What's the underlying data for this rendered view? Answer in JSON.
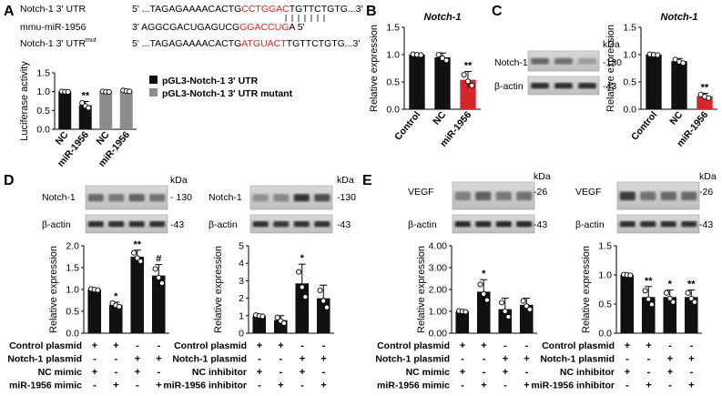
{
  "colors": {
    "black_bar": "#111111",
    "gray_bar": "#8c8c8c",
    "red_bar": "#d7262b",
    "seq_red": "#e2231a",
    "blot_bg": "#c8c8c8"
  },
  "panel_letters": [
    "A",
    "B",
    "C",
    "D",
    "E"
  ],
  "panel_a": {
    "seq1_label": "Notch-1 3' UTR",
    "seq1_pre": "5' ...TAGAGAAAACACTG",
    "seq1_red": "CCTGGAC",
    "seq1_post": "TGTTCTGTG...3'",
    "seq2_label": "mmu-miR-1956",
    "seq2_pre": "3'  AGGCGACUGAGUCG",
    "seq2_red": "GGACCUG",
    "seq2_post": "A 5'",
    "seq3_label": "Notch-1 3' UTR",
    "seq3_sup": "mut",
    "seq3_pre": "5' ...TAGAGAAAACACTG",
    "seq3_red": "ATGUACT",
    "seq3_post": "TGTTCTGTG...3'",
    "ylabel": "Luciferase activity",
    "yticks": [
      "0.0",
      "0.5",
      "1.0",
      "1.5"
    ],
    "legend": [
      "pGL3-Notch-1 3' UTR",
      "pGL3-Notch-1 3' UTR mutant"
    ],
    "xlabels": [
      "NC",
      "miR-1956",
      "NC",
      "miR-1956"
    ]
  },
  "panel_b": {
    "title": "Notch-1",
    "ylabel": "Relative expression",
    "yticks": [
      "0.0",
      "0.5",
      "1.0",
      "1.5"
    ],
    "xlabels": [
      "Control",
      "NC",
      "miR-1956"
    ]
  },
  "panel_c": {
    "title": "Notch-1",
    "ylabel": "Relative expression",
    "yticks": [
      "0.0",
      "0.5",
      "1.0",
      "1.5"
    ],
    "xlabels": [
      "Control",
      "NC",
      "miR-1956"
    ],
    "kda": "kDa",
    "blots": [
      "Notch-1",
      "β-actin"
    ],
    "mw": [
      "-130",
      "-43"
    ]
  },
  "panel_d1": {
    "blots": [
      "Notch-1",
      "β-actin"
    ],
    "kda": "kDa",
    "mw": [
      "- 130",
      "-43"
    ],
    "ylabel": "Relative expression",
    "yticks": [
      "0.0",
      "0.5",
      "1.0",
      "1.5",
      "2.0"
    ]
  },
  "panel_d2": {
    "blots": [
      "Notch-1",
      "β-actin"
    ],
    "kda": "kDa",
    "mw": [
      "-130",
      "-43"
    ],
    "ylabel": "Relative expression",
    "yticks": [
      "0",
      "1",
      "2",
      "3",
      "4",
      "5"
    ]
  },
  "panel_e1": {
    "blots": [
      "VEGF",
      "β-actin"
    ],
    "kda": "kDa",
    "mw": [
      "-26",
      "-43"
    ],
    "ylabel": "Relative expression",
    "yticks": [
      "0.00",
      "1.00",
      "2.00",
      "3.00",
      "4.00"
    ]
  },
  "panel_e2": {
    "blots": [
      "VEGF",
      "β-actin"
    ],
    "kda": "kDa",
    "mw": [
      "-26",
      "-43"
    ],
    "ylabel": "Relative expression",
    "yticks": [
      "0.0",
      "0.5",
      "1.0",
      "1.5"
    ]
  },
  "treat_mimic": {
    "rows": [
      "Control plasmid",
      "Notch-1 plasmid",
      "NC mimic",
      "miR-1956 mimic"
    ],
    "signs": [
      [
        "+",
        "+",
        "-",
        "-"
      ],
      [
        "-",
        "-",
        "+",
        "+"
      ],
      [
        "+",
        "-",
        "+",
        "-"
      ],
      [
        "-",
        "+",
        "-",
        "+"
      ]
    ]
  },
  "treat_inhib": {
    "rows": [
      "Control plasmid",
      "Notch-1 plasmid",
      "NC inhibitor",
      "miR-1956 inhibitor"
    ],
    "signs": [
      [
        "+",
        "+",
        "-",
        "-"
      ],
      [
        "-",
        "-",
        "+",
        "+"
      ],
      [
        "+",
        "-",
        "+",
        "-"
      ],
      [
        "-",
        "+",
        "-",
        "+"
      ]
    ]
  },
  "chart_data": [
    {
      "type": "bar",
      "panel": "A",
      "ylabel": "Luciferase activity",
      "ylim": [
        0,
        1.5
      ],
      "categories": [
        "NC",
        "miR-1956",
        "NC",
        "miR-1956"
      ],
      "series": [
        {
          "name": "pGL3-Notch-1 3' UTR",
          "values": [
            1.0,
            0.64,
            null,
            null
          ]
        },
        {
          "name": "pGL3-Notch-1 3' UTR mutant",
          "values": [
            null,
            null,
            1.0,
            1.02
          ]
        }
      ],
      "errors": [
        0.01,
        0.1,
        0.01,
        0.02
      ],
      "annotations": [
        "",
        "**",
        "",
        ""
      ]
    },
    {
      "type": "bar",
      "panel": "B",
      "title": "Notch-1",
      "ylabel": "Relative expression",
      "ylim": [
        0,
        1.5
      ],
      "categories": [
        "Control",
        "NC",
        "miR-1956"
      ],
      "values": [
        1.0,
        0.95,
        0.54
      ],
      "errors": [
        0.01,
        0.08,
        0.15
      ],
      "annotations": [
        "",
        "",
        "**"
      ]
    },
    {
      "type": "bar",
      "panel": "C",
      "title": "Notch-1",
      "ylabel": "Relative expression",
      "ylim": [
        0,
        1.5
      ],
      "categories": [
        "Control",
        "NC",
        "miR-1956"
      ],
      "values": [
        1.0,
        0.88,
        0.24
      ],
      "errors": [
        0.01,
        0.05,
        0.05
      ],
      "annotations": [
        "",
        "",
        "**"
      ]
    },
    {
      "type": "bar",
      "panel": "D-mimic",
      "ylabel": "Relative expression",
      "ylim": [
        0,
        2.0
      ],
      "categories": [
        "1",
        "2",
        "3",
        "4"
      ],
      "values": [
        1.0,
        0.65,
        1.75,
        1.32
      ],
      "errors": [
        0.02,
        0.06,
        0.15,
        0.25
      ],
      "annotations": [
        "",
        "*",
        "**",
        "#"
      ]
    },
    {
      "type": "bar",
      "panel": "D-inhibitor",
      "ylabel": "Relative expression",
      "ylim": [
        0,
        5
      ],
      "categories": [
        "1",
        "2",
        "3",
        "4"
      ],
      "values": [
        1.0,
        0.75,
        2.85,
        2.0
      ],
      "errors": [
        0.05,
        0.25,
        1.1,
        0.75
      ],
      "annotations": [
        "",
        "",
        "*",
        ""
      ]
    },
    {
      "type": "bar",
      "panel": "E-mimic",
      "ylabel": "Relative expression",
      "ylim": [
        0,
        4
      ],
      "categories": [
        "1",
        "2",
        "3",
        "4"
      ],
      "values": [
        1.0,
        1.9,
        1.1,
        1.3
      ],
      "errors": [
        0.03,
        0.55,
        0.5,
        0.3
      ],
      "annotations": [
        "",
        "*",
        "",
        ""
      ]
    },
    {
      "type": "bar",
      "panel": "E-inhibitor",
      "ylabel": "Relative expression",
      "ylim": [
        0,
        1.5
      ],
      "categories": [
        "1",
        "2",
        "3",
        "4"
      ],
      "values": [
        1.0,
        0.62,
        0.62,
        0.62
      ],
      "errors": [
        0.01,
        0.18,
        0.12,
        0.12
      ],
      "annotations": [
        "",
        "**",
        "*",
        "**"
      ]
    }
  ]
}
